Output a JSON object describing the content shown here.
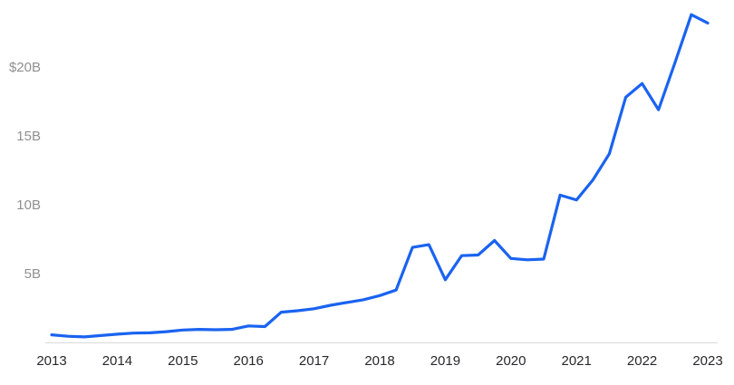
{
  "chart_data": {
    "type": "line",
    "x": [
      2013,
      2013.25,
      2013.5,
      2013.75,
      2014,
      2014.25,
      2014.5,
      2014.75,
      2015,
      2015.25,
      2015.5,
      2015.75,
      2016,
      2016.25,
      2016.5,
      2016.75,
      2017,
      2017.25,
      2017.5,
      2017.75,
      2018,
      2018.25,
      2018.5,
      2018.75,
      2019,
      2019.25,
      2019.5,
      2019.75,
      2020,
      2020.25,
      2020.5,
      2020.75,
      2021,
      2021.25,
      2021.5,
      2021.75,
      2022,
      2022.25,
      2022.5,
      2022.75,
      2023
    ],
    "values": [
      0.55,
      0.45,
      0.4,
      0.5,
      0.6,
      0.68,
      0.7,
      0.78,
      0.9,
      0.95,
      0.92,
      0.95,
      1.2,
      1.15,
      2.2,
      2.3,
      2.45,
      2.7,
      2.9,
      3.1,
      3.4,
      3.8,
      6.9,
      7.1,
      4.55,
      6.3,
      6.35,
      7.4,
      6.1,
      6.0,
      6.05,
      10.7,
      10.35,
      11.8,
      13.7,
      17.8,
      18.8,
      16.9,
      20.3,
      23.8,
      23.2
    ],
    "x_ticks": [
      {
        "value": 2013,
        "label": "2013"
      },
      {
        "value": 2014,
        "label": "2014"
      },
      {
        "value": 2015,
        "label": "2015"
      },
      {
        "value": 2016,
        "label": "2016"
      },
      {
        "value": 2017,
        "label": "2017"
      },
      {
        "value": 2018,
        "label": "2018"
      },
      {
        "value": 2019,
        "label": "2019"
      },
      {
        "value": 2020,
        "label": "2020"
      },
      {
        "value": 2021,
        "label": "2021"
      },
      {
        "value": 2022,
        "label": "2022"
      },
      {
        "value": 2023,
        "label": "2023"
      }
    ],
    "y_ticks": [
      {
        "value": 20,
        "label": "$20B"
      },
      {
        "value": 15,
        "label": "15B"
      },
      {
        "value": 10,
        "label": "10B"
      },
      {
        "value": 5,
        "label": "5B"
      }
    ],
    "xlim": [
      2013,
      2023
    ],
    "ylim": [
      0,
      24.6
    ],
    "grid": false,
    "legend": false,
    "line_color": "#1a63f0",
    "axis_line_color": "#d9d9d9",
    "x_label_color": "#26282a",
    "y_label_color": "#8f8f8f",
    "background": "#ffffff"
  }
}
